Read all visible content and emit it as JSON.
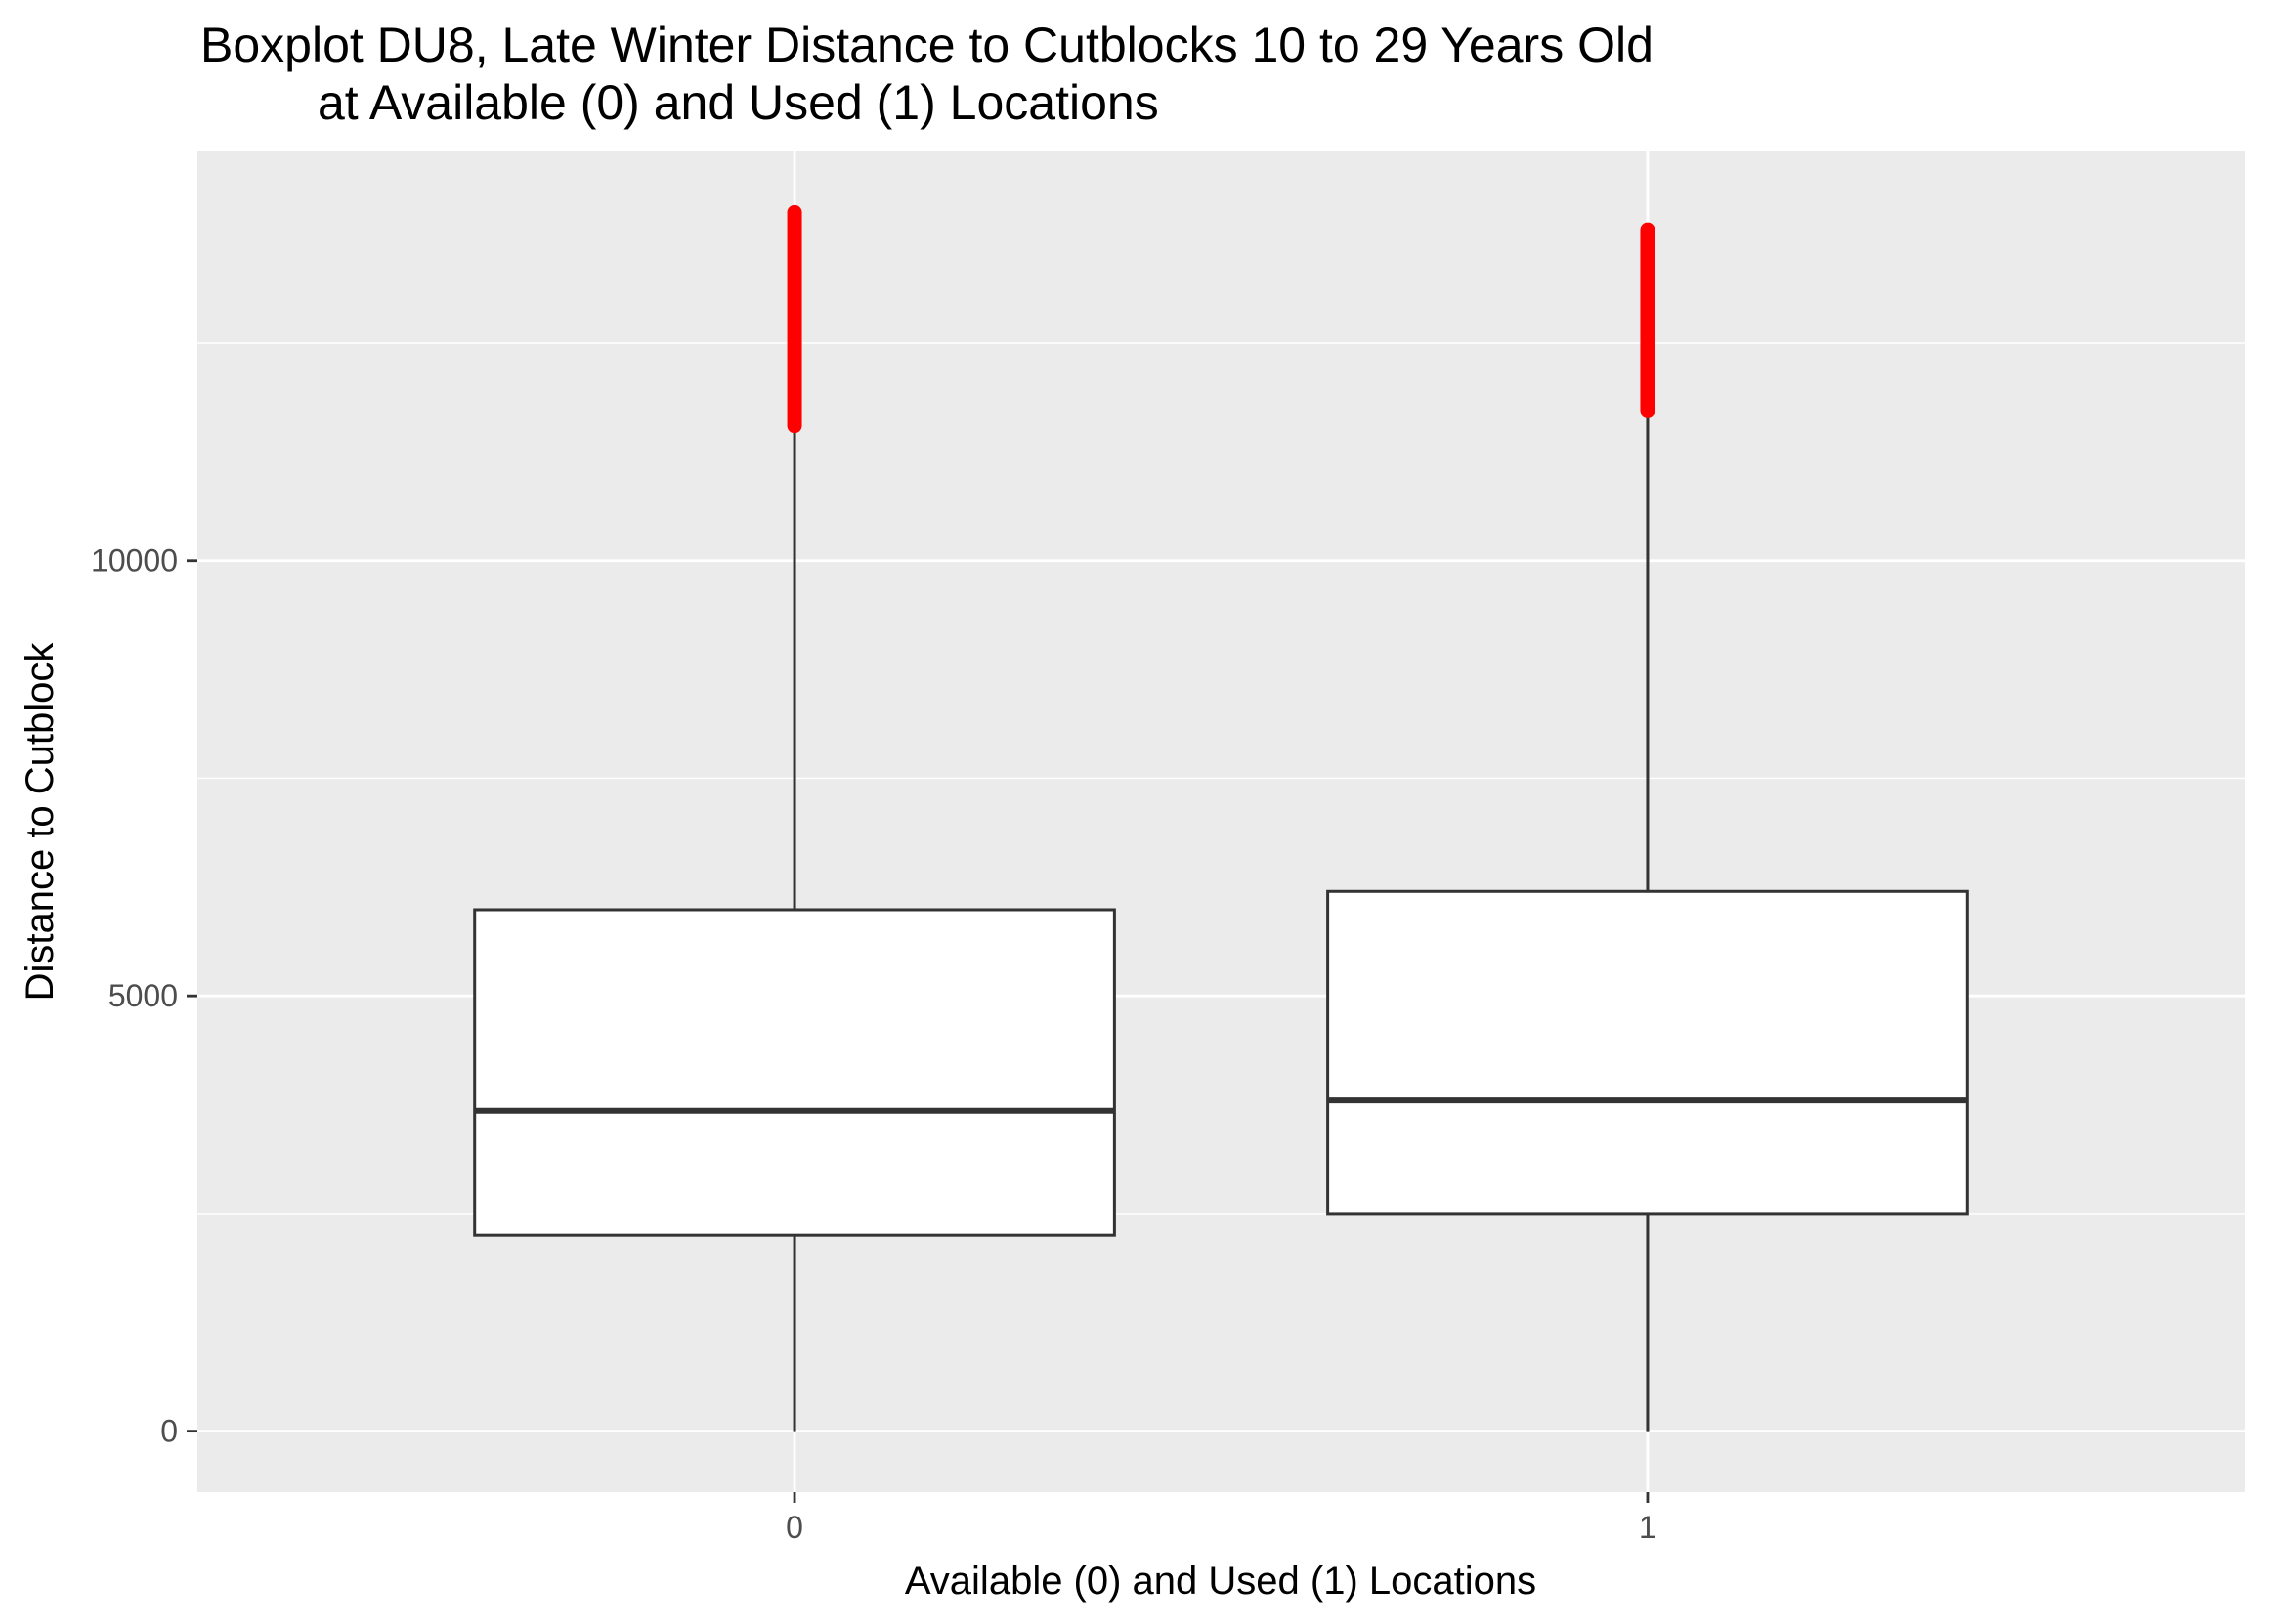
{
  "chart_data": {
    "type": "box",
    "title_line1": "Boxplot DU8, Late Winter Distance to Cutblocks 10 to 29 Years Old",
    "title_line2": "at Available (0) and Used (1) Locations",
    "xlabel": "Available (0) and Used (1) Locations",
    "ylabel": "Distance to Cutblock",
    "categories": [
      "0",
      "1"
    ],
    "y_ticks": [
      0,
      5000,
      10000
    ],
    "y_tick_labels": [
      "0",
      "5000",
      "10000"
    ],
    "ylim": [
      -700,
      14700
    ],
    "grid": true,
    "boxes": [
      {
        "category": "0",
        "min": 0,
        "q1": 2250,
        "median": 3680,
        "q3": 5990,
        "whisker_high": 11550,
        "outliers_low": 11550,
        "outliers_high": 14000
      },
      {
        "category": "1",
        "min": 0,
        "q1": 2500,
        "median": 3800,
        "q3": 6200,
        "whisker_high": 11720,
        "outliers_low": 11720,
        "outliers_high": 13800
      }
    ],
    "colors": {
      "panel_background": "#ebebeb",
      "grid_major": "#ffffff",
      "box_fill": "#ffffff",
      "box_line": "#333333",
      "outliers": "#ff0000"
    }
  }
}
